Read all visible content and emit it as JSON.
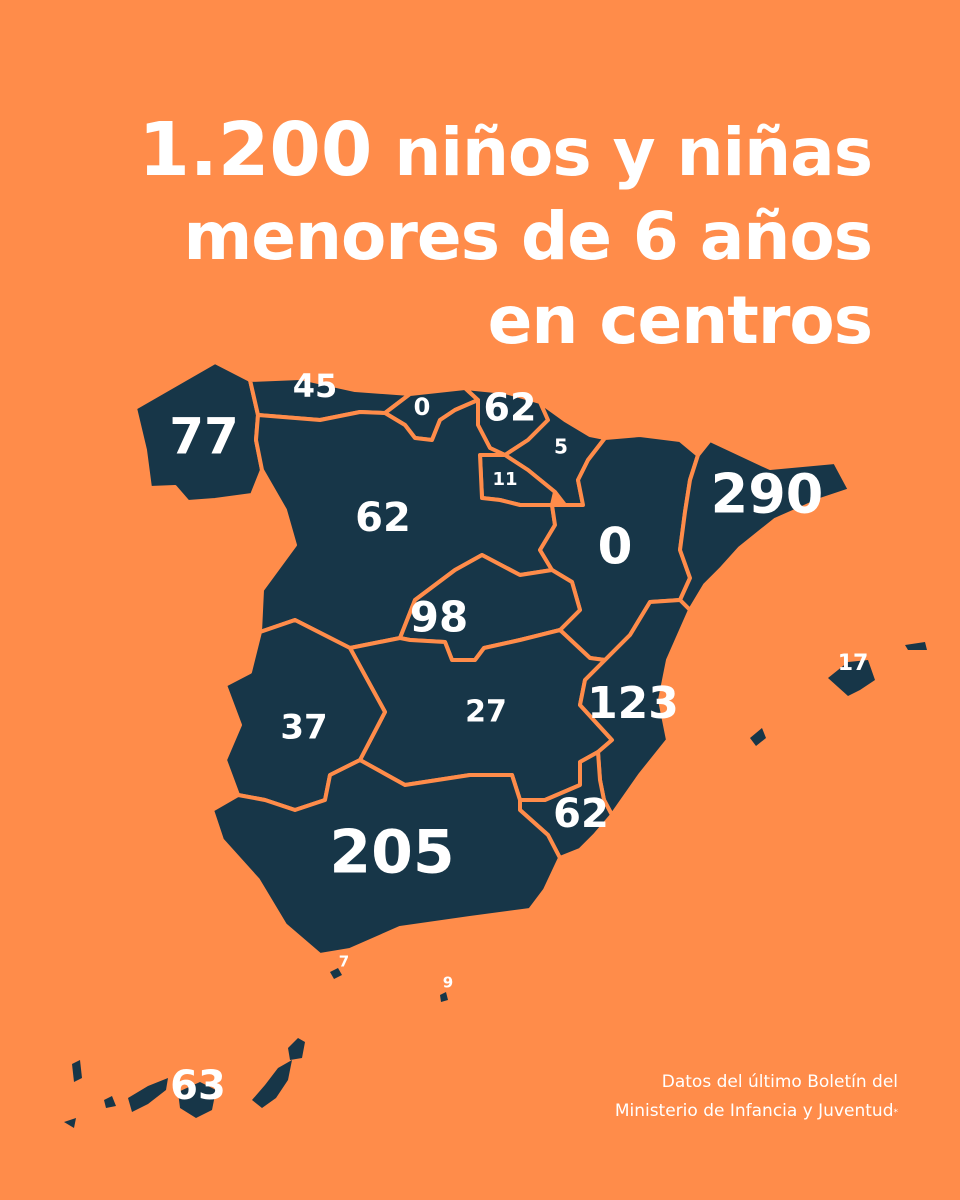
{
  "headline": {
    "number": "1.200",
    "line1_rest": "niños y niñas",
    "line2": "menores de 6 años",
    "line3": "en centros"
  },
  "colors": {
    "background": "#FF8C4A",
    "region_fill": "#173648",
    "text": "#FFFFFF"
  },
  "regions": {
    "galicia": "77",
    "asturias": "45",
    "cantabria": "0",
    "pais_vasco": "62",
    "navarra": "5",
    "la_rioja": "11",
    "castilla_leon": "62",
    "aragon": "0",
    "cataluna": "290",
    "madrid": "98",
    "castilla_la_mancha": "27",
    "extremadura": "37",
    "comunidad_valenciana": "123",
    "murcia": "62",
    "andalucia": "205",
    "baleares": "17",
    "ceuta": "7",
    "melilla": "9",
    "canarias": "63"
  },
  "source": {
    "line1": "Datos del último Boletín del",
    "line2": "Ministerio de Infancia y Juventud",
    "mark": "*"
  }
}
